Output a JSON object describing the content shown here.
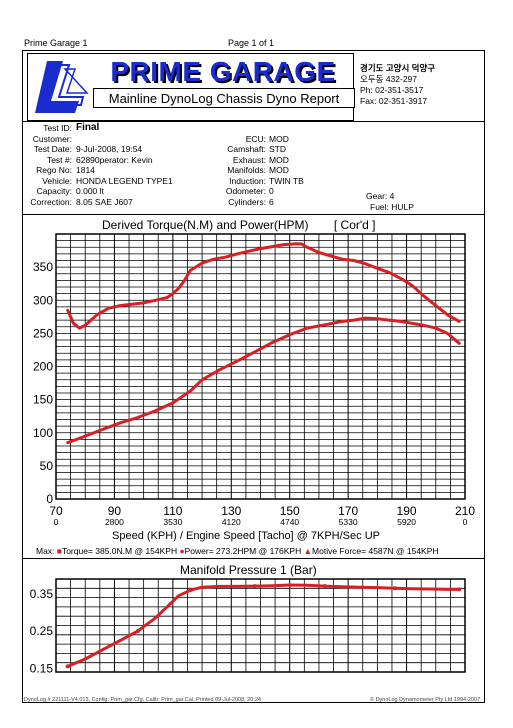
{
  "page_header": {
    "left": "Prime Garage 1",
    "center": "Page 1 of 1"
  },
  "brand": {
    "name": "PRIME GARAGE",
    "subtitle": "Mainline DynoLog Chassis Dyno Report",
    "colors": {
      "brand_blue": "#1a2ccf",
      "curve_red": "#d91f26"
    },
    "logo_icon": "stylized-L-logo"
  },
  "contact": {
    "line1": "경기도 고양시 덕양구",
    "line2": "오두동 432-297",
    "phone": "Ph: 02-351-3517",
    "fax": "Fax: 02-351-3917"
  },
  "test_info": {
    "test_id_label": "Test ID:",
    "test_id": "Final",
    "customer_label": "Customer:",
    "customer": "",
    "date_label": "Test Date:",
    "date": "9-Jul-2008, 19:54",
    "test_no_label": "Test #:",
    "test_no": "62890perator: Kevin",
    "rego_label": "Rego No:",
    "rego": "1814",
    "vehicle_label": "Vehicle:",
    "vehicle": "HONDA LEGEND TYPE1",
    "capacity_label": "Capacity:",
    "capacity": "0.000 lt",
    "correction_label": "Correction:",
    "correction": "8.05 SAE J607",
    "ecu_label": "ECU:",
    "ecu": "MOD",
    "camshaft_label": "Camshaft:",
    "camshaft": "STD",
    "exhaust_label": "Exhaust:",
    "exhaust": "MOD",
    "manifolds_label": "Manifolds:",
    "manifolds": "MOD",
    "induction_label": "Induction:",
    "induction": "TWIN TB",
    "odometer_label": "Odometer:",
    "odometer": "0",
    "cylinders_label": "Cylinders:",
    "cylinders": "6",
    "gear_label": "Gear:",
    "gear": "4",
    "fuel_label": "Fuel:",
    "fuel": "HULP"
  },
  "chart_data": [
    {
      "type": "line",
      "title": "Derived Torque(N.M) and Power(HPM)",
      "title_suffix": "[ Cor'd ]",
      "xlabel": "Speed (KPH) / Engine Speed [Tacho] @ 7KPH/Sec UP",
      "x_ticks": [
        70,
        90,
        110,
        130,
        150,
        170,
        190,
        210
      ],
      "rpm_ticks": [
        "0",
        "2800",
        "3530",
        "4120",
        "4740",
        "5330",
        "5920",
        "0"
      ],
      "xlim": [
        70,
        210
      ],
      "y_ticks": [
        0,
        50,
        100,
        150,
        200,
        250,
        300,
        350
      ],
      "ylim": [
        0,
        400
      ],
      "grid": true,
      "series": [
        {
          "x": [
            74,
            76,
            78,
            80,
            84,
            88,
            92,
            96,
            100,
            104,
            108,
            110,
            112,
            114,
            116,
            120,
            124,
            128,
            132,
            136,
            140,
            144,
            148,
            152,
            154,
            156,
            160,
            164,
            168,
            172,
            176,
            180,
            184,
            188,
            192,
            196,
            200,
            204,
            208
          ],
          "values": [
            285,
            265,
            258,
            262,
            278,
            288,
            292,
            294,
            296,
            300,
            304,
            310,
            318,
            330,
            345,
            356,
            362,
            365,
            370,
            374,
            378,
            381,
            384,
            385,
            385,
            380,
            372,
            367,
            362,
            360,
            355,
            348,
            342,
            333,
            322,
            306,
            292,
            278,
            268
          ]
        },
        {
          "x": [
            74,
            80,
            86,
            92,
            98,
            104,
            110,
            116,
            120,
            126,
            132,
            138,
            144,
            150,
            156,
            162,
            168,
            172,
            176,
            180,
            184,
            188,
            192,
            196,
            200,
            204,
            208
          ],
          "values": [
            85,
            95,
            105,
            115,
            123,
            133,
            145,
            163,
            180,
            195,
            208,
            222,
            236,
            248,
            258,
            263,
            268,
            270,
            273,
            272,
            270,
            268,
            265,
            262,
            258,
            250,
            235
          ]
        }
      ]
    },
    {
      "type": "line",
      "title": "Manifold Pressure 1 (Bar)",
      "x_ticks": [
        70,
        90,
        110,
        130,
        150,
        170,
        190,
        210
      ],
      "xlim": [
        70,
        210
      ],
      "y_ticks": [
        0.15,
        0.25,
        0.35
      ],
      "ylim": [
        0.14,
        0.39
      ],
      "grid": true,
      "series": [
        {
          "x": [
            74,
            80,
            86,
            92,
            98,
            104,
            108,
            112,
            116,
            120,
            126,
            132,
            138,
            144,
            150,
            156,
            162,
            168,
            174,
            180,
            186,
            192,
            198,
            204,
            208
          ],
          "values": [
            0.155,
            0.175,
            0.2,
            0.225,
            0.25,
            0.285,
            0.315,
            0.345,
            0.36,
            0.368,
            0.37,
            0.37,
            0.371,
            0.372,
            0.374,
            0.373,
            0.371,
            0.369,
            0.368,
            0.367,
            0.365,
            0.364,
            0.363,
            0.362,
            0.362
          ]
        }
      ]
    }
  ],
  "max_line": {
    "prefix": "Max:",
    "torque": "Torque= 385.0N.M @ 154KPH",
    "power": "Power= 273.2HPM @ 176KPH",
    "motive": "Motive Force= 4587N @ 154KPH"
  },
  "footer": {
    "left": "DynoLog # 221111-V4.013, Config: Prim_gar.Cfg, Calib: Prim_gar.Cal, Printed 09-Jul-2008, 20:24",
    "right": "© DynoLog Dynamometer Pty Ltd 1994-2007"
  }
}
